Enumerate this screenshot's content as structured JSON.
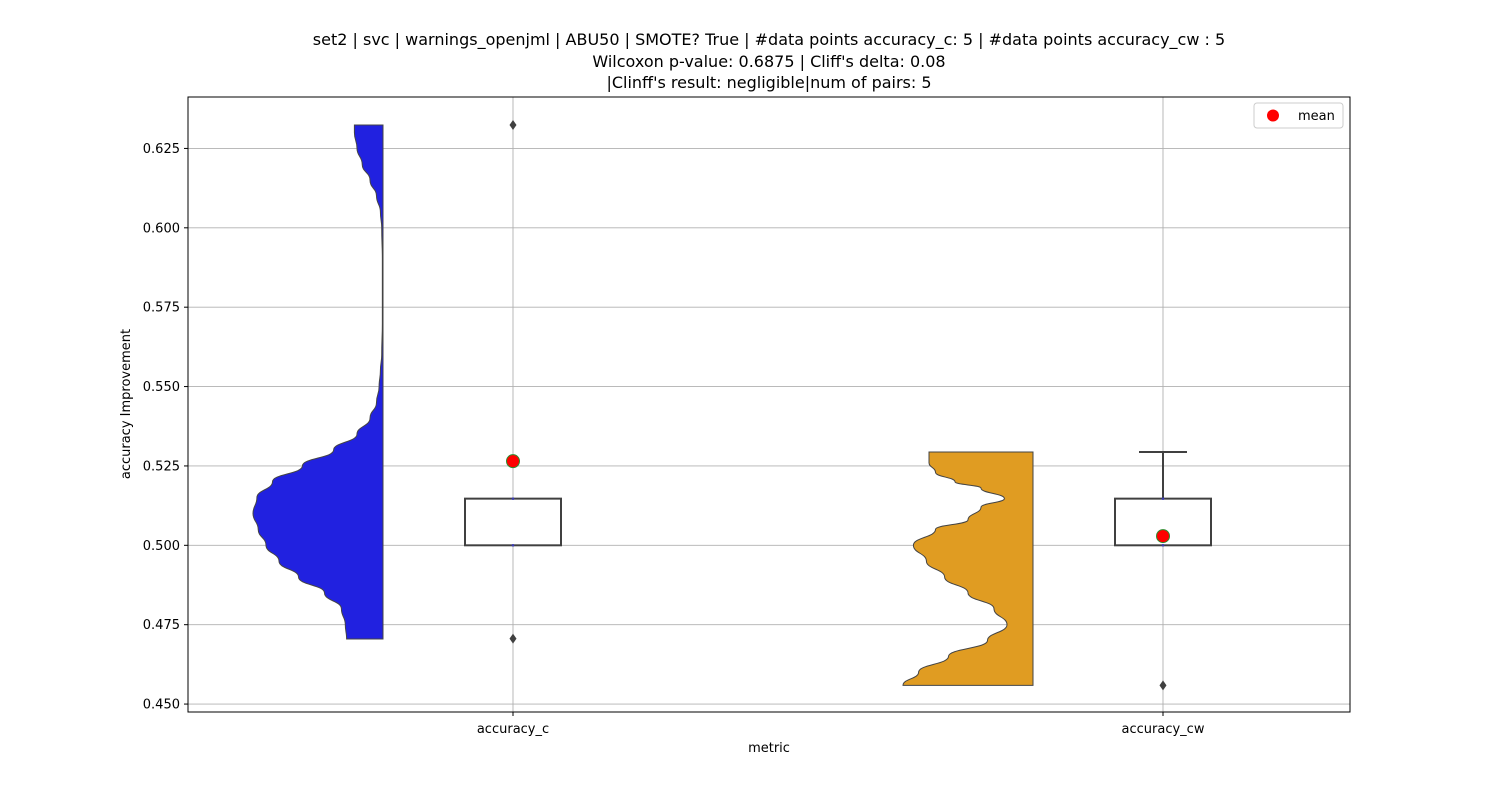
{
  "title_lines": [
    "set2 | svc | warnings_openjml | ABU50 | SMOTE? True | #data points accuracy_c: 5 | #data points accuracy_cw : 5",
    "Wilcoxon p-value: 0.6875 | Cliff's delta: 0.08",
    "|Clinff's result: negligible|num of pairs: 5"
  ],
  "chart_data": {
    "type": "violin+box",
    "xlabel": "metric",
    "ylabel": "accuracy Improvement",
    "ylim": [
      0.4475,
      0.6412
    ],
    "yticks": [
      0.45,
      0.475,
      0.5,
      0.525,
      0.55,
      0.575,
      0.6,
      0.625
    ],
    "ytick_labels": [
      "0.450",
      "0.475",
      "0.500",
      "0.525",
      "0.550",
      "0.575",
      "0.600",
      "0.625"
    ],
    "categories": [
      "accuracy_c",
      "accuracy_cw"
    ],
    "grid": true,
    "legend": {
      "position": "top-right",
      "entries": [
        {
          "label": "mean",
          "color": "#ff0000",
          "marker": "circle"
        }
      ]
    },
    "series": [
      {
        "category": "accuracy_c",
        "violin_color": "#2121e0",
        "violin_range": [
          0.4705,
          0.6324
        ],
        "violin_profile": [
          [
            0.4705,
            0.28
          ],
          [
            0.475,
            0.29
          ],
          [
            0.48,
            0.32
          ],
          [
            0.485,
            0.45
          ],
          [
            0.49,
            0.65
          ],
          [
            0.495,
            0.8
          ],
          [
            0.5,
            0.9
          ],
          [
            0.505,
            0.96
          ],
          [
            0.51,
            1.0
          ],
          [
            0.515,
            0.97
          ],
          [
            0.52,
            0.85
          ],
          [
            0.525,
            0.62
          ],
          [
            0.53,
            0.38
          ],
          [
            0.535,
            0.2
          ],
          [
            0.54,
            0.1
          ],
          [
            0.545,
            0.05
          ],
          [
            0.55,
            0.03
          ],
          [
            0.555,
            0.02
          ],
          [
            0.56,
            0.01
          ],
          [
            0.57,
            0.005
          ],
          [
            0.58,
            0.005
          ],
          [
            0.59,
            0.005
          ],
          [
            0.6,
            0.01
          ],
          [
            0.605,
            0.02
          ],
          [
            0.61,
            0.05
          ],
          [
            0.615,
            0.1
          ],
          [
            0.62,
            0.16
          ],
          [
            0.625,
            0.2
          ],
          [
            0.63,
            0.22
          ],
          [
            0.6324,
            0.22
          ]
        ],
        "box": {
          "q1": 0.5,
          "median": 0.5147,
          "q3": 0.5147,
          "whisker_low": 0.5,
          "whisker_high": 0.5147
        },
        "outliers": [
          0.4706,
          0.6324
        ],
        "mean": 0.5265
      },
      {
        "category": "accuracy_cw",
        "violin_color": "#e09c22",
        "violin_range": [
          0.4559,
          0.5294
        ],
        "violin_profile": [
          [
            0.4559,
            1.0
          ],
          [
            0.46,
            0.88
          ],
          [
            0.465,
            0.65
          ],
          [
            0.47,
            0.35
          ],
          [
            0.475,
            0.2
          ],
          [
            0.48,
            0.3
          ],
          [
            0.485,
            0.5
          ],
          [
            0.49,
            0.68
          ],
          [
            0.495,
            0.82
          ],
          [
            0.5,
            0.92
          ],
          [
            0.505,
            0.75
          ],
          [
            0.508,
            0.5
          ],
          [
            0.512,
            0.4
          ],
          [
            0.5147,
            0.22
          ],
          [
            0.518,
            0.4
          ],
          [
            0.52,
            0.6
          ],
          [
            0.523,
            0.75
          ],
          [
            0.526,
            0.8
          ],
          [
            0.5294,
            0.8
          ]
        ],
        "box": {
          "q1": 0.5,
          "median": 0.5147,
          "q3": 0.5147,
          "whisker_low": 0.5,
          "whisker_high": 0.5294
        },
        "outliers": [
          0.4559
        ],
        "mean": 0.5029
      }
    ]
  }
}
